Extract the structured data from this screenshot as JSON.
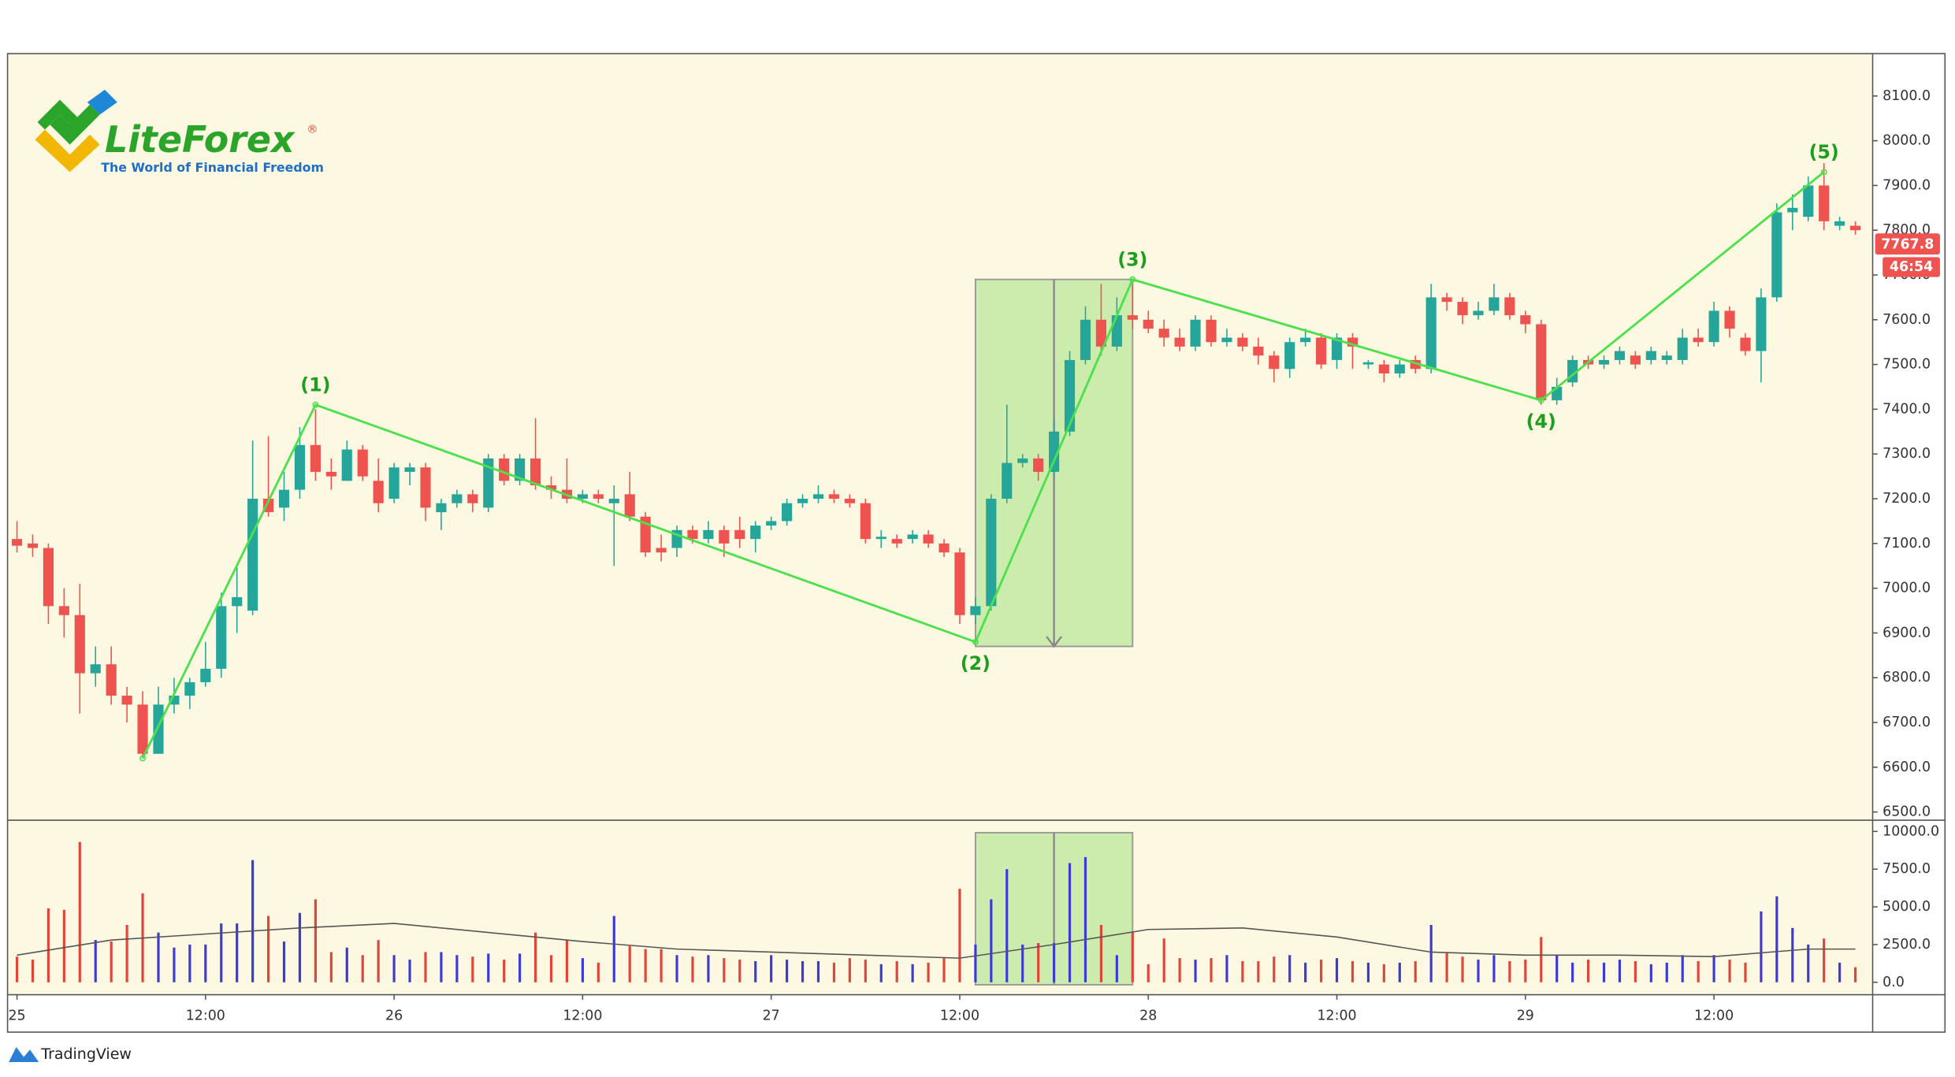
{
  "logo": {
    "name": "LiteForex",
    "trademark": "®",
    "tagline": "The World of Financial Freedom"
  },
  "footer": "TradingView",
  "chart_data": {
    "type": "candlestick",
    "background": "#fdf8e1",
    "up_color": "#26a69a",
    "down_color": "#ef5350",
    "x": [
      0,
      1,
      2,
      3,
      4,
      5,
      6,
      7,
      8,
      9,
      10,
      11,
      12,
      13,
      14,
      15,
      16,
      17,
      18,
      19,
      20,
      21,
      22,
      23,
      24,
      25,
      26,
      27,
      28,
      29,
      30,
      31,
      32,
      33,
      34,
      35,
      36,
      37,
      38,
      39,
      40,
      41,
      42,
      43,
      44,
      45,
      46,
      47,
      48,
      49,
      50,
      51,
      52,
      53,
      54,
      55,
      56,
      57,
      58,
      59,
      60,
      61,
      62,
      63,
      64,
      65,
      66,
      67,
      68,
      69,
      70,
      71,
      72,
      73,
      74,
      75,
      76,
      77,
      78,
      79,
      80,
      81,
      82,
      83,
      84,
      85,
      86,
      87,
      88,
      89,
      90,
      91,
      92,
      93,
      94,
      95,
      96,
      97,
      98,
      99,
      100,
      101,
      102,
      103,
      104,
      105,
      106,
      107,
      108,
      109,
      110,
      111,
      112,
      113,
      114,
      115,
      116,
      117
    ],
    "open": [
      7110,
      7100,
      7090,
      6960,
      6940,
      6810,
      6830,
      6760,
      6740,
      6630,
      6740,
      6760,
      6790,
      6820,
      6960,
      6950,
      7200,
      7180,
      7220,
      7320,
      7260,
      7240,
      7310,
      7240,
      7200,
      7260,
      7270,
      7170,
      7190,
      7210,
      7180,
      7290,
      7240,
      7290,
      7230,
      7220,
      7200,
      7210,
      7190,
      7210,
      7160,
      7090,
      7090,
      7130,
      7110,
      7130,
      7130,
      7110,
      7140,
      7150,
      7190,
      7200,
      7210,
      7200,
      7190,
      7110,
      7110,
      7110,
      7120,
      7100,
      7080,
      6940,
      6960,
      7200,
      7280,
      7290,
      7260,
      7350,
      7510,
      7600,
      7540,
      7610,
      7600,
      7580,
      7560,
      7540,
      7600,
      7550,
      7560,
      7540,
      7520,
      7490,
      7550,
      7560,
      7510,
      7560,
      7500,
      7500,
      7480,
      7510,
      7490,
      7650,
      7640,
      7610,
      7620,
      7650,
      7610,
      7590,
      7420,
      7460,
      7510,
      7500,
      7510,
      7520,
      7510,
      7510,
      7510,
      7560,
      7550,
      7620,
      7560,
      7530,
      7650,
      7840,
      7830,
      7900,
      7810,
      7810
    ],
    "high": [
      7150,
      7120,
      7100,
      7000,
      7010,
      6870,
      6870,
      6780,
      6770,
      6780,
      6800,
      6800,
      6880,
      6990,
      7050,
      7330,
      7340,
      7260,
      7360,
      7400,
      7290,
      7330,
      7320,
      7290,
      7280,
      7280,
      7280,
      7200,
      7220,
      7220,
      7300,
      7300,
      7300,
      7380,
      7250,
      7290,
      7220,
      7220,
      7230,
      7260,
      7170,
      7120,
      7140,
      7140,
      7150,
      7140,
      7160,
      7150,
      7160,
      7200,
      7210,
      7230,
      7220,
      7210,
      7200,
      7130,
      7120,
      7130,
      7130,
      7110,
      7090,
      6980,
      7210,
      7410,
      7300,
      7300,
      7380,
      7530,
      7630,
      7680,
      7650,
      7680,
      7620,
      7600,
      7580,
      7610,
      7610,
      7580,
      7570,
      7560,
      7530,
      7560,
      7580,
      7570,
      7570,
      7570,
      7510,
      7510,
      7510,
      7520,
      7680,
      7660,
      7650,
      7640,
      7680,
      7660,
      7620,
      7600,
      7470,
      7520,
      7520,
      7520,
      7540,
      7530,
      7540,
      7530,
      7580,
      7580,
      7640,
      7630,
      7570,
      7670,
      7860,
      7880,
      7920,
      7950,
      7830,
      7820
    ],
    "low": [
      7080,
      7070,
      6920,
      6890,
      6720,
      6780,
      6740,
      6700,
      6620,
      6630,
      6720,
      6730,
      6780,
      6800,
      6900,
      6940,
      7160,
      7150,
      7200,
      7240,
      7220,
      7240,
      7240,
      7170,
      7190,
      7230,
      7150,
      7130,
      7180,
      7170,
      7170,
      7230,
      7230,
      7220,
      7200,
      7190,
      7190,
      7190,
      7050,
      7150,
      7070,
      7060,
      7070,
      7100,
      7100,
      7070,
      7090,
      7080,
      7130,
      7140,
      7180,
      7190,
      7190,
      7180,
      7100,
      7090,
      7090,
      7100,
      7090,
      7070,
      6920,
      6920,
      6950,
      7190,
      7270,
      7240,
      7250,
      7340,
      7500,
      7520,
      7530,
      7580,
      7570,
      7540,
      7530,
      7530,
      7540,
      7540,
      7530,
      7500,
      7460,
      7470,
      7540,
      7490,
      7490,
      7490,
      7490,
      7460,
      7470,
      7480,
      7480,
      7620,
      7590,
      7600,
      7610,
      7600,
      7570,
      7410,
      7410,
      7450,
      7490,
      7490,
      7500,
      7490,
      7500,
      7500,
      7500,
      7540,
      7540,
      7560,
      7520,
      7460,
      7640,
      7800,
      7820,
      7800,
      7800,
      7790
    ],
    "close": [
      7095,
      7090,
      6960,
      6940,
      6810,
      6830,
      6760,
      6740,
      6630,
      6740,
      6760,
      6790,
      6820,
      6960,
      6980,
      7200,
      7170,
      7220,
      7320,
      7260,
      7250,
      7310,
      7250,
      7190,
      7270,
      7270,
      7180,
      7190,
      7210,
      7190,
      7290,
      7240,
      7290,
      7230,
      7220,
      7200,
      7210,
      7200,
      7200,
      7160,
      7080,
      7080,
      7130,
      7110,
      7130,
      7100,
      7110,
      7140,
      7150,
      7190,
      7200,
      7210,
      7200,
      7190,
      7110,
      7115,
      7100,
      7120,
      7100,
      7080,
      6940,
      6960,
      7200,
      7280,
      7290,
      7260,
      7350,
      7510,
      7600,
      7540,
      7610,
      7600,
      7580,
      7560,
      7540,
      7600,
      7550,
      7560,
      7540,
      7520,
      7490,
      7550,
      7560,
      7500,
      7560,
      7540,
      7505,
      7480,
      7500,
      7490,
      7650,
      7640,
      7610,
      7620,
      7650,
      7610,
      7590,
      7420,
      7450,
      7510,
      7500,
      7510,
      7530,
      7500,
      7530,
      7520,
      7560,
      7550,
      7620,
      7580,
      7530,
      7650,
      7840,
      7850,
      7900,
      7820,
      7820,
      7800
    ],
    "xlim": [
      -0.6,
      118.1
    ],
    "xticks": [
      {
        "value": 0,
        "label": "25"
      },
      {
        "value": 12,
        "label": "12:00"
      },
      {
        "value": 24,
        "label": "26"
      },
      {
        "value": 36,
        "label": "12:00"
      },
      {
        "value": 48,
        "label": "27"
      },
      {
        "value": 60,
        "label": "12:00"
      },
      {
        "value": 72,
        "label": "28"
      },
      {
        "value": 84,
        "label": "12:00"
      },
      {
        "value": 96,
        "label": "29"
      },
      {
        "value": 108,
        "label": "12:00"
      }
    ],
    "ylim": [
      6481.6,
      8194.7
    ],
    "yticks": [
      {
        "value": 6500,
        "label": "6500.0"
      },
      {
        "value": 6600,
        "label": "6600.0"
      },
      {
        "value": 6700,
        "label": "6700.0"
      },
      {
        "value": 6800,
        "label": "6800.0"
      },
      {
        "value": 6900,
        "label": "6900.0"
      },
      {
        "value": 7000,
        "label": "7000.0"
      },
      {
        "value": 7100,
        "label": "7100.0"
      },
      {
        "value": 7200,
        "label": "7200.0"
      },
      {
        "value": 7300,
        "label": "7300.0"
      },
      {
        "value": 7400,
        "label": "7400.0"
      },
      {
        "value": 7500,
        "label": "7500.0"
      },
      {
        "value": 7600,
        "label": "7600.0"
      },
      {
        "value": 7700,
        "label": "7700.0"
      },
      {
        "value": 7800,
        "label": "7800.0"
      },
      {
        "value": 7900,
        "label": "7900.0"
      },
      {
        "value": 8000,
        "label": "8000.0"
      },
      {
        "value": 8100,
        "label": "8100.0"
      }
    ],
    "price_tag": {
      "value": 7767.8,
      "label": "7767.8",
      "timer": "46:54",
      "color": "#ef5350"
    },
    "waves": {
      "color": "#4de04d",
      "x": [
        8,
        19,
        61,
        71,
        97,
        115
      ],
      "values": [
        6620,
        7410,
        6880,
        7690,
        7420,
        7930
      ],
      "labels": [
        null,
        "(1)",
        "(2)",
        "(3)",
        "(4)",
        "(5)"
      ]
    },
    "projection": {
      "color": "#9be07a",
      "x": [
        61,
        71
      ],
      "values": [
        7690,
        6870
      ]
    },
    "volume": {
      "up_color": "#3b3bd4",
      "down_color": "#e0453a",
      "values": [
        1700,
        1500,
        4900,
        4800,
        9300,
        2800,
        2700,
        3800,
        5900,
        3300,
        2300,
        2500,
        2500,
        3900,
        3900,
        8100,
        4400,
        2700,
        4600,
        5500,
        2000,
        2300,
        1800,
        2800,
        1800,
        1500,
        2000,
        2000,
        1800,
        1700,
        1900,
        1500,
        1900,
        3300,
        1800,
        2800,
        1600,
        1300,
        4400,
        2400,
        2200,
        2200,
        1800,
        1700,
        1800,
        1600,
        1500,
        1400,
        1800,
        1500,
        1400,
        1400,
        1300,
        1600,
        1500,
        1200,
        1400,
        1200,
        1300,
        1600,
        6200,
        2500,
        5500,
        7500,
        2500,
        2600,
        2600,
        7900,
        8300,
        3800,
        1800,
        3300,
        1200,
        2900,
        1600,
        1500,
        1600,
        1800,
        1400,
        1400,
        1700,
        1800,
        1300,
        1500,
        1600,
        1400,
        1300,
        1200,
        1300,
        1400,
        3800,
        2000,
        1700,
        1500,
        1800,
        1400,
        1500,
        3000,
        1800,
        1300,
        1500,
        1300,
        1500,
        1400,
        1200,
        1300,
        1800,
        1400,
        1800,
        1500,
        1300,
        4700,
        5700,
        3600,
        2500,
        2900,
        1300,
        1000
      ],
      "ylim": [
        -826,
        10744
      ],
      "yticks": [
        {
          "value": 0,
          "label": "0.0"
        },
        {
          "value": 2500,
          "label": "2500.0"
        },
        {
          "value": 5000,
          "label": "5000.0"
        },
        {
          "value": 7500,
          "label": "7500.0"
        },
        {
          "value": 10000,
          "label": "10000.0"
        }
      ],
      "ma": {
        "color": "#555555",
        "x": [
          0,
          6,
          12,
          18,
          24,
          30,
          36,
          42,
          48,
          54,
          60,
          66,
          72,
          78,
          84,
          90,
          96,
          102,
          108,
          114,
          117
        ],
        "values": [
          1800,
          2800,
          3200,
          3600,
          3900,
          3300,
          2700,
          2200,
          2000,
          1800,
          1600,
          2500,
          3500,
          3600,
          3000,
          2000,
          1800,
          1800,
          1700,
          2200,
          2200
        ]
      }
    }
  }
}
